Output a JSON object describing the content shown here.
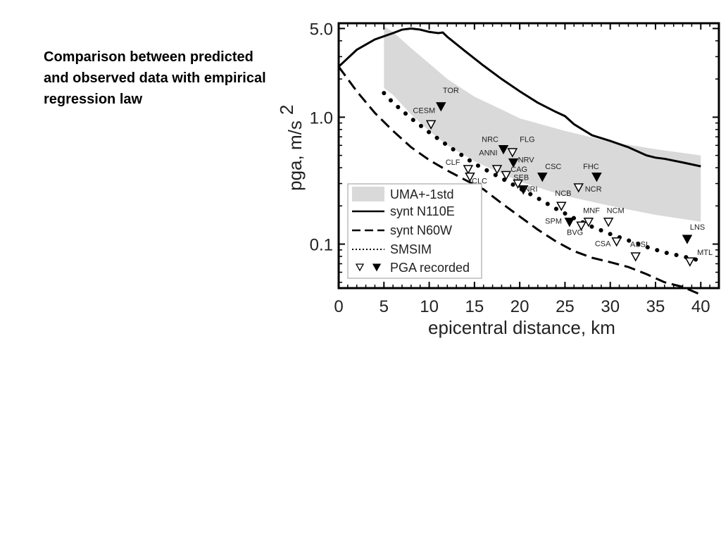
{
  "caption": "Comparison between predicted and observed data with empirical regression law",
  "chart_data": {
    "type": "line",
    "xlabel": "epicentral distance, km",
    "ylabel": "pga, m/s",
    "ylabel_sup": "2",
    "xlim": [
      0,
      42
    ],
    "ylim": [
      0.045,
      5.5
    ],
    "yscale": "log",
    "x_ticks": [
      "0",
      "5",
      "10",
      "15",
      "20",
      "25",
      "30",
      "35",
      "40"
    ],
    "x_tick_values": [
      0,
      5,
      10,
      15,
      20,
      25,
      30,
      35,
      40
    ],
    "y_ticks": [
      "5.0",
      "1.0",
      "0.1"
    ],
    "y_tick_values": [
      5.0,
      1.0,
      0.1
    ],
    "band": {
      "name": "UMA+-1std",
      "color": "#d9d9d9",
      "x": [
        5,
        6,
        8,
        10,
        12,
        15,
        18,
        20,
        25,
        30,
        35,
        40
      ],
      "upper": [
        5.2,
        4.7,
        3.5,
        2.65,
        2.0,
        1.45,
        1.15,
        0.98,
        0.78,
        0.64,
        0.56,
        0.5
      ],
      "lower": [
        1.7,
        1.5,
        1.05,
        0.78,
        0.6,
        0.45,
        0.36,
        0.31,
        0.24,
        0.2,
        0.17,
        0.15
      ]
    },
    "series": [
      {
        "name": "synt N110E",
        "style": "solid",
        "x": [
          0,
          2,
          4,
          6,
          7,
          8,
          9,
          10,
          11,
          11.5,
          12,
          14,
          16,
          18,
          20,
          22,
          24,
          25,
          26,
          28,
          30,
          32,
          34,
          35,
          36,
          38,
          40
        ],
        "y": [
          2.5,
          3.4,
          4.1,
          4.6,
          4.9,
          5.0,
          4.9,
          4.7,
          4.6,
          4.65,
          4.3,
          3.3,
          2.55,
          2.0,
          1.6,
          1.3,
          1.1,
          1.02,
          0.88,
          0.72,
          0.65,
          0.58,
          0.5,
          0.48,
          0.47,
          0.44,
          0.41
        ]
      },
      {
        "name": "synt N60W",
        "style": "dashed",
        "x": [
          0,
          2,
          4,
          6,
          8,
          10,
          12,
          14,
          16,
          18,
          20,
          22,
          24,
          26,
          28,
          30,
          32,
          34,
          36,
          38,
          40
        ],
        "y": [
          2.5,
          1.6,
          1.08,
          0.78,
          0.58,
          0.46,
          0.38,
          0.32,
          0.27,
          0.21,
          0.165,
          0.13,
          0.105,
          0.088,
          0.078,
          0.072,
          0.066,
          0.058,
          0.05,
          0.046,
          0.04
        ]
      },
      {
        "name": "SMSIM",
        "style": "dotted",
        "x": [
          5,
          6,
          8,
          10,
          12,
          15,
          18,
          20,
          22,
          24,
          26,
          28,
          30,
          32,
          34,
          36,
          38,
          40
        ],
        "y": [
          1.55,
          1.3,
          0.98,
          0.76,
          0.6,
          0.43,
          0.33,
          0.275,
          0.23,
          0.19,
          0.16,
          0.137,
          0.12,
          0.107,
          0.095,
          0.086,
          0.08,
          0.074
        ]
      }
    ],
    "legend": {
      "placement": "bottom-left",
      "items": [
        {
          "symbol": "band",
          "label": "UMA+-1std"
        },
        {
          "symbol": "solid",
          "label": "synt N110E"
        },
        {
          "symbol": "dashed",
          "label": "synt N60W"
        },
        {
          "symbol": "dotted",
          "label": "SMSIM"
        },
        {
          "symbol": "triangles",
          "label": "PGA recorded"
        }
      ]
    },
    "stations": [
      {
        "label": "TOR",
        "x": 11.3,
        "y": 1.22,
        "filled": true,
        "lx": 11.5,
        "ly": 1.55
      },
      {
        "label": "CESM",
        "x": 10.2,
        "y": 0.88,
        "filled": false,
        "lx": 8.2,
        "ly": 1.08
      },
      {
        "label": "NRC",
        "x": 18.2,
        "y": 0.56,
        "filled": true,
        "lx": 15.8,
        "ly": 0.64
      },
      {
        "label": "FLG",
        "x": 19.2,
        "y": 0.53,
        "filled": false,
        "lx": 20.0,
        "ly": 0.64
      },
      {
        "label": "ANNI",
        "x": 17.5,
        "y": 0.39,
        "filled": false,
        "lx": 15.5,
        "ly": 0.5
      },
      {
        "label": "NRV",
        "x": 19.3,
        "y": 0.44,
        "filled": true,
        "lx": 19.8,
        "ly": 0.44
      },
      {
        "label": "CLF",
        "x": 14.3,
        "y": 0.39,
        "filled": false,
        "lx": 11.8,
        "ly": 0.42
      },
      {
        "label": "CLC",
        "x": 14.5,
        "y": 0.34,
        "filled": false,
        "lx": 14.7,
        "ly": 0.3
      },
      {
        "label": "CAG",
        "x": 18.5,
        "y": 0.35,
        "filled": false,
        "lx": 19.0,
        "ly": 0.37
      },
      {
        "label": "SEB",
        "x": 19.8,
        "y": 0.3,
        "filled": false,
        "lx": 19.3,
        "ly": 0.32
      },
      {
        "label": "NRI",
        "x": 20.4,
        "y": 0.27,
        "filled": true,
        "lx": 20.5,
        "ly": 0.26
      },
      {
        "label": "CSC",
        "x": 22.5,
        "y": 0.34,
        "filled": true,
        "lx": 22.8,
        "ly": 0.39
      },
      {
        "label": "FHC",
        "x": 28.5,
        "y": 0.34,
        "filled": true,
        "lx": 27.0,
        "ly": 0.39
      },
      {
        "label": "NCR",
        "x": 26.5,
        "y": 0.28,
        "filled": false,
        "lx": 27.2,
        "ly": 0.26
      },
      {
        "label": "NCB",
        "x": 24.6,
        "y": 0.2,
        "filled": false,
        "lx": 23.9,
        "ly": 0.24
      },
      {
        "label": "MNF",
        "x": 27.6,
        "y": 0.15,
        "filled": false,
        "lx": 27.0,
        "ly": 0.175
      },
      {
        "label": "NCM",
        "x": 29.8,
        "y": 0.15,
        "filled": false,
        "lx": 29.6,
        "ly": 0.175
      },
      {
        "label": "SPM",
        "x": 25.5,
        "y": 0.15,
        "filled": true,
        "lx": 22.8,
        "ly": 0.145
      },
      {
        "label": "BVG",
        "x": 26.8,
        "y": 0.14,
        "filled": false,
        "lx": 25.2,
        "ly": 0.118
      },
      {
        "label": "CSA",
        "x": 30.7,
        "y": 0.105,
        "filled": false,
        "lx": 28.3,
        "ly": 0.096
      },
      {
        "label": "ASSI",
        "x": 32.8,
        "y": 0.08,
        "filled": false,
        "lx": 32.2,
        "ly": 0.095
      },
      {
        "label": "LNS",
        "x": 38.5,
        "y": 0.11,
        "filled": true,
        "lx": 38.8,
        "ly": 0.13
      },
      {
        "label": "MTL",
        "x": 38.8,
        "y": 0.073,
        "filled": false,
        "lx": 39.6,
        "ly": 0.082
      }
    ]
  }
}
